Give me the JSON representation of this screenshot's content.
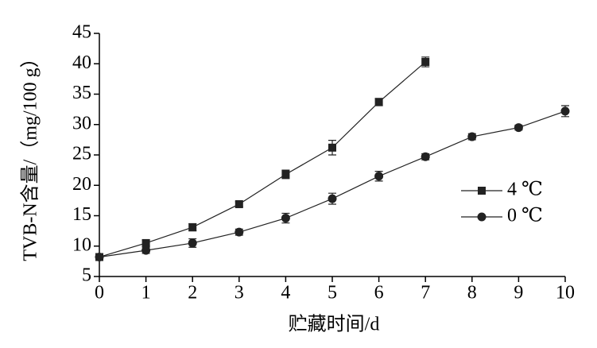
{
  "chart_data": {
    "type": "line",
    "x_label": "贮藏时间/d",
    "y_label": "TVB-N含量/（mg/100 g）",
    "x": [
      0,
      1,
      2,
      3,
      4,
      5,
      6,
      7,
      8,
      9,
      10
    ],
    "series": [
      {
        "name": "4 ℃",
        "color": "#222222",
        "marker": "square",
        "values": [
          8.2,
          10.5,
          13.1,
          16.9,
          21.8,
          26.2,
          33.7,
          40.3,
          null,
          null,
          null
        ],
        "errors": [
          0.5,
          0.5,
          0.6,
          0.4,
          0.7,
          1.2,
          0.6,
          0.8,
          null,
          null,
          null
        ]
      },
      {
        "name": "0 ℃",
        "color": "#222222",
        "marker": "circle",
        "values": [
          8.2,
          9.3,
          10.5,
          12.3,
          14.6,
          17.8,
          21.5,
          24.7,
          28.0,
          29.5,
          32.2
        ],
        "errors": [
          0.4,
          0.5,
          0.7,
          0.5,
          0.8,
          0.9,
          0.8,
          0.5,
          0.5,
          0.4,
          0.9
        ]
      }
    ],
    "xlim": [
      0,
      10
    ],
    "xticks": [
      0,
      1,
      2,
      3,
      4,
      5,
      6,
      7,
      8,
      9,
      10
    ],
    "ylim": [
      5,
      45
    ],
    "yticks": [
      5,
      10,
      15,
      20,
      25,
      30,
      35,
      40,
      45
    ],
    "legend": "right",
    "grid": false
  }
}
